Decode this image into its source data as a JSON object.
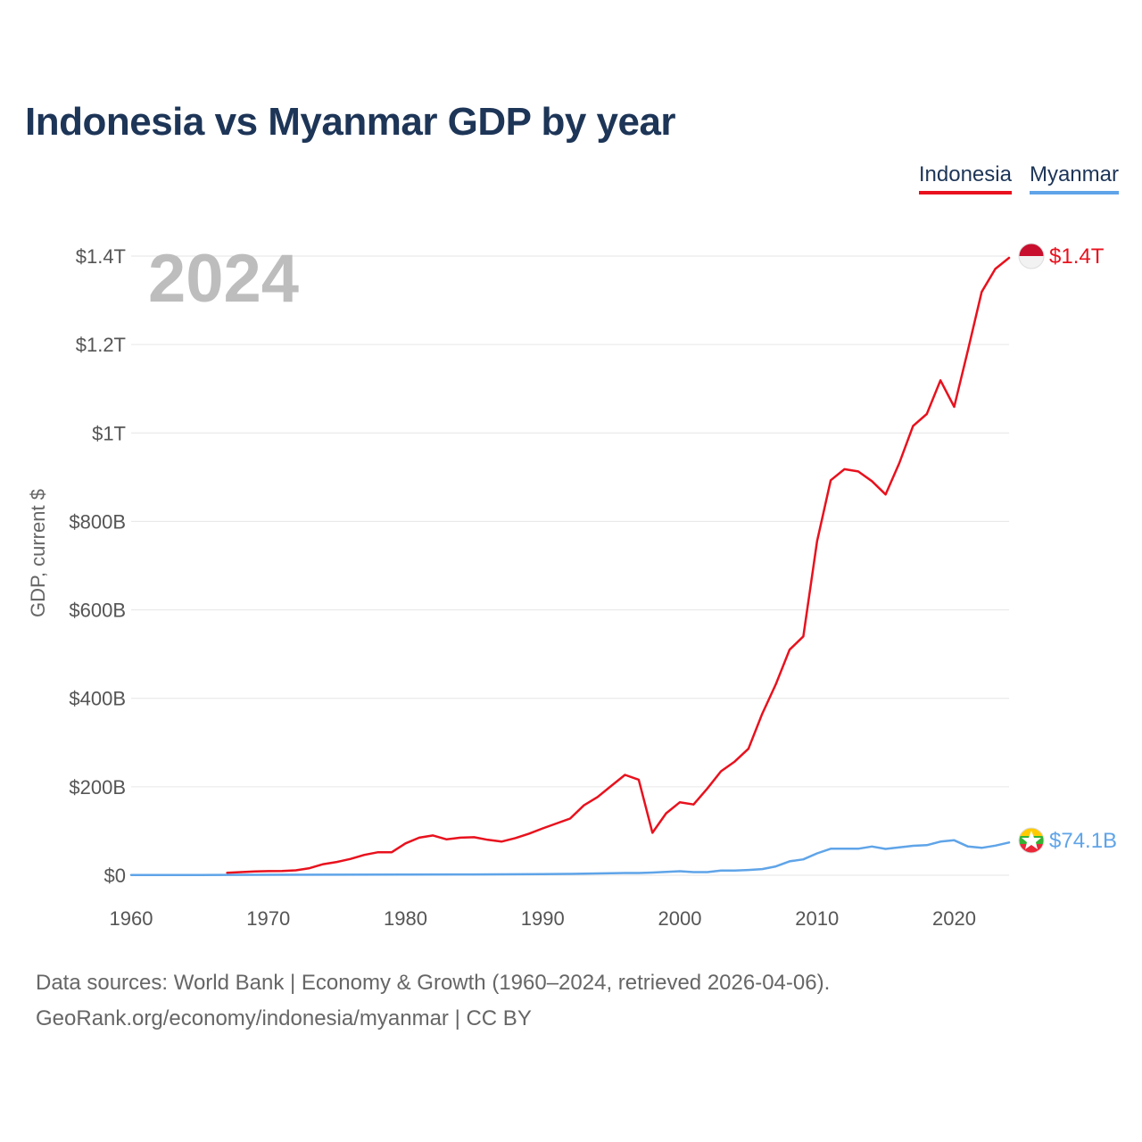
{
  "title": "Indonesia vs Myanmar GDP by year",
  "legend": {
    "indonesia": "Indonesia",
    "myanmar": "Myanmar"
  },
  "year_label": "2024",
  "end_labels": {
    "indonesia": "$1.4T",
    "myanmar": "$74.1B"
  },
  "colors": {
    "indonesia": "#e8111d",
    "myanmar": "#5fa4e8",
    "title": "#1d3557"
  },
  "source_line1": "Data sources: World Bank | Economy & Growth (1960–2024, retrieved 2026-04-06).",
  "source_line2": "GeoRank.org/economy/indonesia/myanmar | CC BY",
  "chart_data": {
    "type": "line",
    "title": "Indonesia vs Myanmar GDP by year",
    "xlabel": "",
    "ylabel": "GDP, current $",
    "xlim": [
      1960,
      2024
    ],
    "ylim": [
      0,
      1400
    ],
    "y_unit": "billions USD",
    "x_ticks": [
      1960,
      1970,
      1980,
      1990,
      2000,
      2010,
      2020
    ],
    "y_ticks": [
      {
        "value": 0,
        "label": "$0"
      },
      {
        "value": 200,
        "label": "$200B"
      },
      {
        "value": 400,
        "label": "$400B"
      },
      {
        "value": 600,
        "label": "$600B"
      },
      {
        "value": 800,
        "label": "$800B"
      },
      {
        "value": 1000,
        "label": "$1T"
      },
      {
        "value": 1200,
        "label": "$1.2T"
      },
      {
        "value": 1400,
        "label": "$1.4T"
      }
    ],
    "grid": true,
    "legend_position": "top-right",
    "series": [
      {
        "name": "Indonesia",
        "x": [
          1967,
          1968,
          1969,
          1970,
          1971,
          1972,
          1973,
          1974,
          1975,
          1976,
          1977,
          1978,
          1979,
          1980,
          1981,
          1982,
          1983,
          1984,
          1985,
          1986,
          1987,
          1988,
          1989,
          1990,
          1991,
          1992,
          1993,
          1994,
          1995,
          1996,
          1997,
          1998,
          1999,
          2000,
          2001,
          2002,
          2003,
          2004,
          2005,
          2006,
          2007,
          2008,
          2009,
          2010,
          2011,
          2012,
          2013,
          2014,
          2015,
          2016,
          2017,
          2018,
          2019,
          2020,
          2021,
          2022,
          2023,
          2024
        ],
        "values": [
          5.7,
          7.1,
          8.6,
          9.2,
          9.6,
          11,
          16,
          25,
          30,
          37,
          46,
          52,
          52,
          72,
          85,
          90,
          81,
          85,
          86,
          80,
          76,
          84,
          94,
          106,
          117,
          128,
          158,
          177,
          202,
          227,
          216,
          96,
          140,
          165,
          160,
          196,
          235,
          257,
          286,
          365,
          432,
          510,
          540,
          755,
          893,
          918,
          913,
          891,
          861,
          932,
          1016,
          1043,
          1119,
          1059,
          1187,
          1319,
          1371,
          1396
        ]
      },
      {
        "name": "Myanmar",
        "x": [
          1960,
          1965,
          1970,
          1975,
          1980,
          1985,
          1990,
          1992,
          1994,
          1996,
          1997,
          1998,
          1999,
          2000,
          2001,
          2002,
          2003,
          2004,
          2005,
          2006,
          2007,
          2008,
          2009,
          2010,
          2011,
          2012,
          2013,
          2014,
          2015,
          2016,
          2017,
          2018,
          2019,
          2020,
          2021,
          2022,
          2023,
          2024
        ],
        "values": [
          0.5,
          0.7,
          1,
          1.2,
          1.5,
          1.8,
          2.5,
          3,
          4,
          5,
          5,
          6,
          7.5,
          9,
          7,
          7,
          10.5,
          10.5,
          12,
          14,
          20,
          31.5,
          36,
          49.5,
          60,
          60,
          60,
          65,
          59.5,
          63,
          66.5,
          68,
          76,
          79,
          65,
          62,
          67,
          74.1
        ]
      }
    ]
  }
}
